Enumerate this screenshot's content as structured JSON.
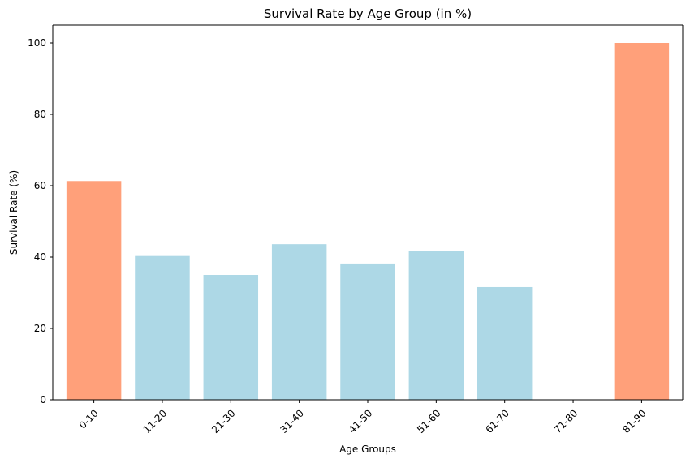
{
  "chart_data": {
    "type": "bar",
    "title": "Survival Rate by Age Group (in %)",
    "xlabel": "Age Groups",
    "ylabel": "Survival Rate (%)",
    "categories": [
      "0-10",
      "11-20",
      "21-30",
      "31-40",
      "41-50",
      "51-60",
      "61-70",
      "71-80",
      "81-90"
    ],
    "values": [
      61.3,
      40.3,
      35.0,
      43.6,
      38.2,
      41.7,
      31.6,
      0,
      100.0
    ],
    "ylim": [
      0,
      105
    ],
    "yticks": [
      "0",
      "20",
      "40",
      "60",
      "80",
      "100"
    ],
    "grid": false,
    "legend": "none",
    "colors": {
      "highlight": "#ffa07a",
      "default": "#add8e6",
      "axis": "#000000"
    },
    "highlighted_categories": [
      "0-10",
      "81-90"
    ]
  }
}
